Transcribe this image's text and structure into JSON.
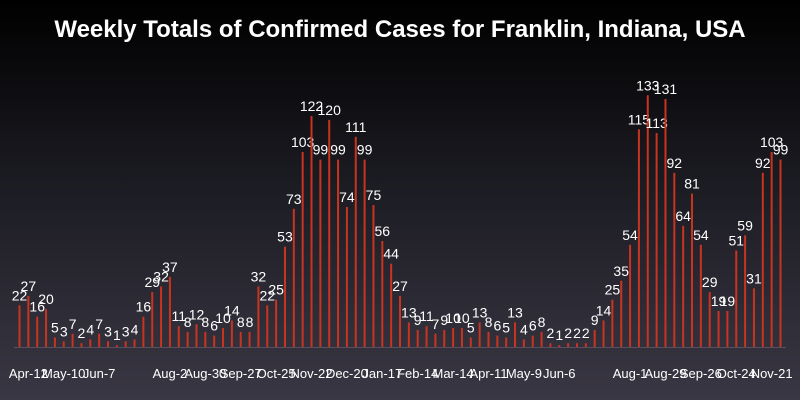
{
  "chart_data": {
    "type": "bar",
    "title": "Weekly Totals of Confirmed Cases for Franklin, Indiana, USA",
    "xlabel": "",
    "ylabel": "",
    "ylim": [
      0,
      140
    ],
    "grid": false,
    "bar_color": "#c8341f",
    "label_color": "#ffffff",
    "values": [
      22,
      27,
      16,
      20,
      5,
      3,
      7,
      2,
      4,
      7,
      3,
      1,
      3,
      4,
      16,
      29,
      32,
      37,
      11,
      8,
      12,
      8,
      6,
      10,
      14,
      8,
      8,
      32,
      22,
      25,
      53,
      73,
      103,
      122,
      99,
      120,
      99,
      74,
      111,
      99,
      75,
      56,
      44,
      27,
      13,
      9,
      11,
      7,
      9,
      10,
      10,
      5,
      13,
      8,
      6,
      5,
      13,
      4,
      6,
      8,
      2,
      1,
      2,
      2,
      2,
      9,
      14,
      25,
      35,
      54,
      115,
      133,
      113,
      131,
      92,
      64,
      81,
      54,
      29,
      19,
      19,
      51,
      59,
      31,
      92,
      103,
      99
    ],
    "tick_labels": [
      {
        "index": 1,
        "label": "Apr-12"
      },
      {
        "index": 5,
        "label": "May-10"
      },
      {
        "index": 9,
        "label": "Jun-7"
      },
      {
        "index": 17,
        "label": "Aug-2"
      },
      {
        "index": 21,
        "label": "Aug-30"
      },
      {
        "index": 25,
        "label": "Sep-27"
      },
      {
        "index": 29,
        "label": "Oct-25"
      },
      {
        "index": 33,
        "label": "Nov-22"
      },
      {
        "index": 37,
        "label": "Dec-20"
      },
      {
        "index": 41,
        "label": "Jan-17"
      },
      {
        "index": 45,
        "label": "Feb-14"
      },
      {
        "index": 49,
        "label": "Mar-14"
      },
      {
        "index": 53,
        "label": "Apr-11"
      },
      {
        "index": 57,
        "label": "May-9"
      },
      {
        "index": 61,
        "label": "Jun-6"
      },
      {
        "index": 69,
        "label": "Aug-1"
      },
      {
        "index": 73,
        "label": "Aug-29"
      },
      {
        "index": 77,
        "label": "Sep-26"
      },
      {
        "index": 81,
        "label": "Oct-24"
      },
      {
        "index": 85,
        "label": "Nov-21"
      }
    ]
  }
}
